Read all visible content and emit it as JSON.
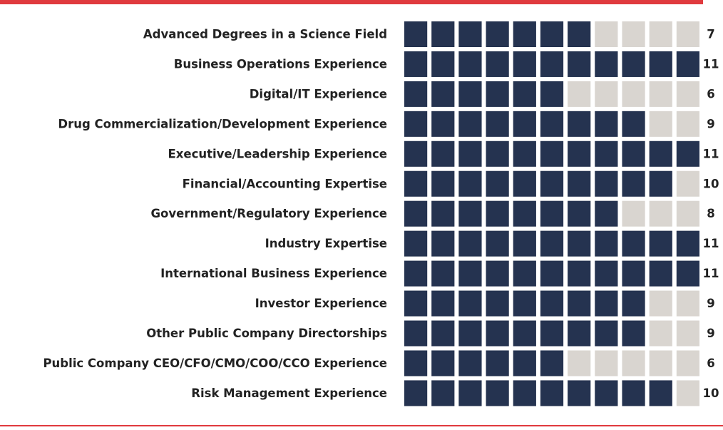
{
  "chart_data": {
    "type": "waffle",
    "categories": [
      "Advanced Degrees in a Science Field",
      "Business Operations Experience",
      "Digital/IT Experience",
      "Drug Commercialization/Development Experience",
      "Executive/Leadership Experience",
      "Financial/Accounting Expertise",
      "Government/Regulatory Experience",
      "Industry Expertise",
      "International Business Experience",
      "Investor Experience",
      "Other Public Company Directorships",
      "Public Company CEO/CFO/CMO/COO/CCO Experience",
      "Risk Management Experience"
    ],
    "values": [
      7,
      11,
      6,
      9,
      11,
      10,
      8,
      11,
      11,
      9,
      9,
      6,
      10
    ],
    "xlim": [
      0,
      11
    ],
    "color": "#253350",
    "empty_color": "#d9d5d0",
    "rule_color": "#e03a3e"
  }
}
